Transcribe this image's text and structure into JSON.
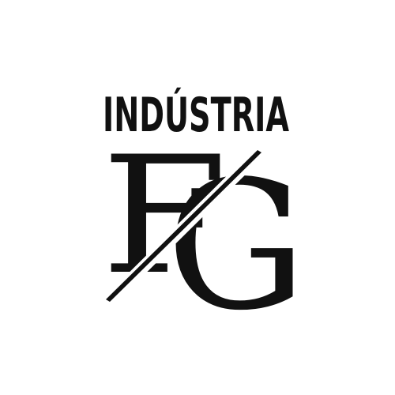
{
  "logo": {
    "wordmark": "INDÚSTRIA",
    "monogram_letters": [
      "F",
      "G"
    ],
    "ink_color": "#111111",
    "background_color": "#ffffff"
  }
}
